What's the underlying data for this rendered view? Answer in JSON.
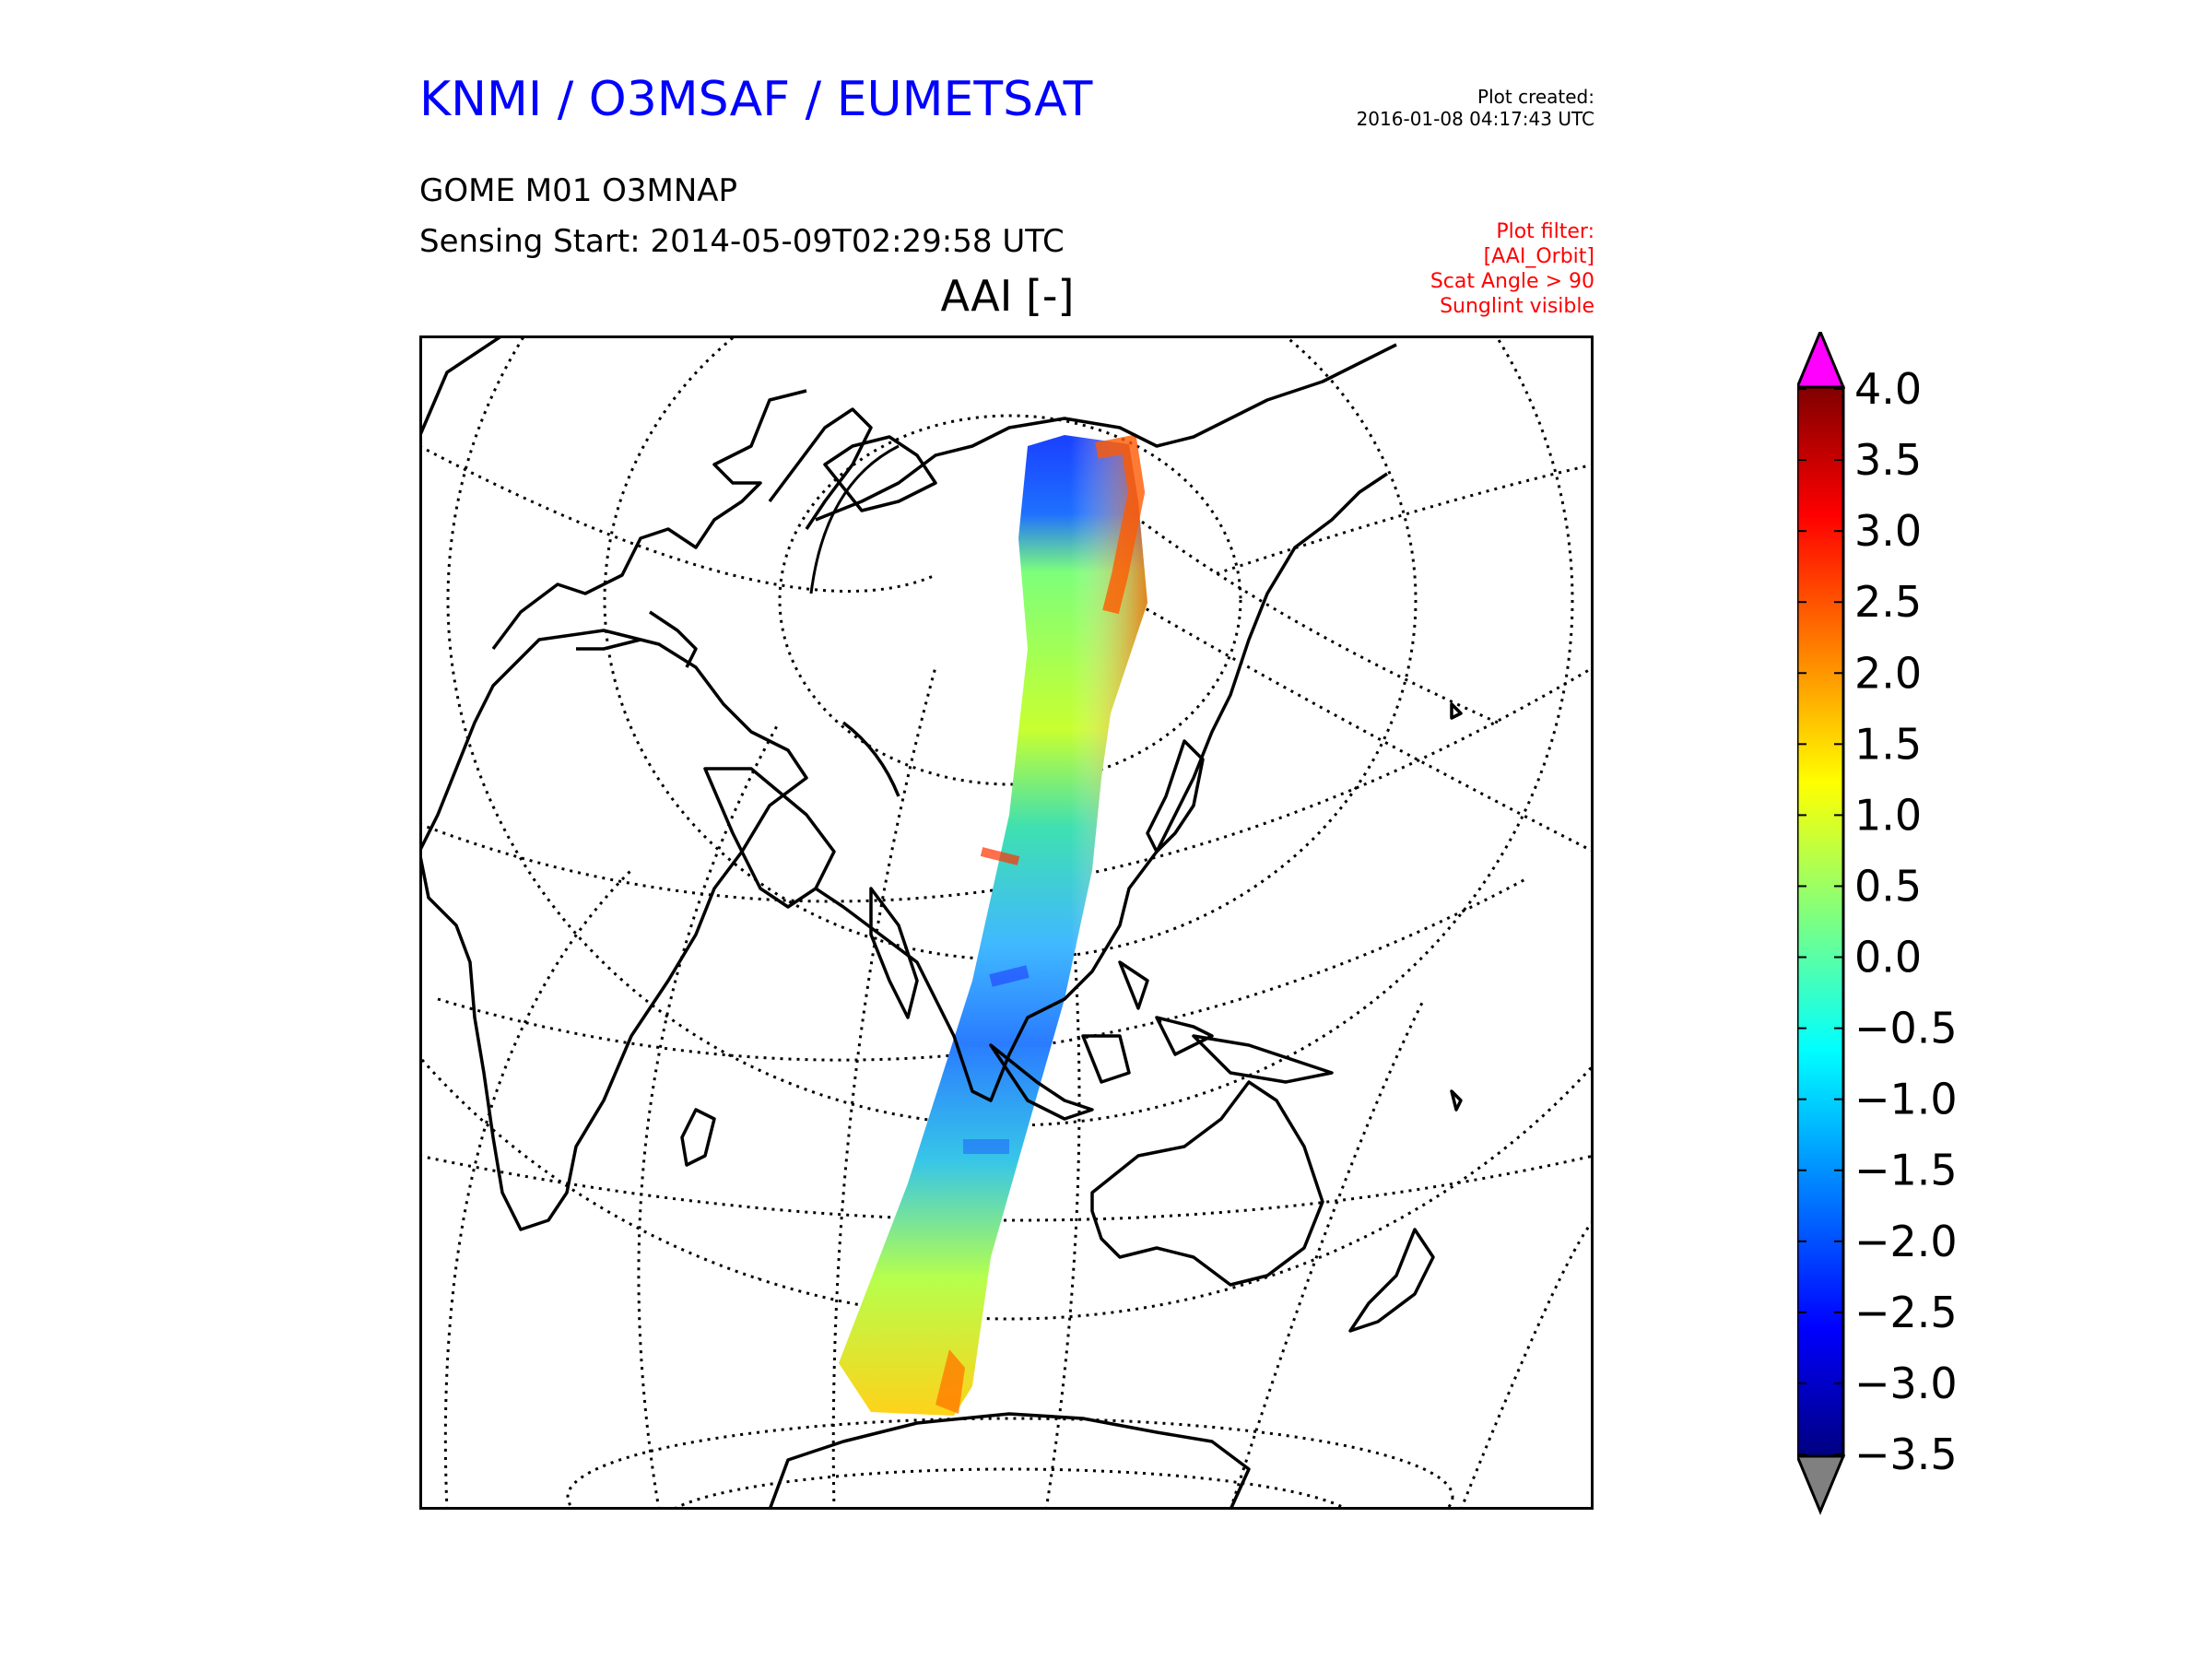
{
  "header": {
    "organisation": "KNMI / O3MSAF / EUMETSAT",
    "product": "GOME M01 O3MNAP",
    "sensing_start": "Sensing Start: 2014-05-09T02:29:58 UTC",
    "plot_created_label": "Plot created:",
    "plot_created_time": "2016-01-08 04:17:43 UTC",
    "filter_lines": [
      "Plot filter:",
      "[AAI_Orbit]",
      "Scat Angle > 90",
      "Sunglint visible"
    ]
  },
  "map": {
    "title": "AAI [-]",
    "projection": "orthographic",
    "graticule": "dotted",
    "coastlines": "black",
    "swath_colormap": "jet"
  },
  "colorbar": {
    "ticks": [
      "4.0",
      "3.5",
      "3.0",
      "2.5",
      "2.0",
      "1.5",
      "1.0",
      "0.5",
      "0.0",
      "−0.5",
      "−1.0",
      "−1.5",
      "−2.0",
      "−2.5",
      "−3.0",
      "−3.5"
    ],
    "min": -3.5,
    "max": 4.0,
    "over_color": "#ff00ff",
    "under_color": "#808080"
  },
  "colors": {
    "org_title": "#0000ff",
    "filter_text": "#ff0000"
  }
}
